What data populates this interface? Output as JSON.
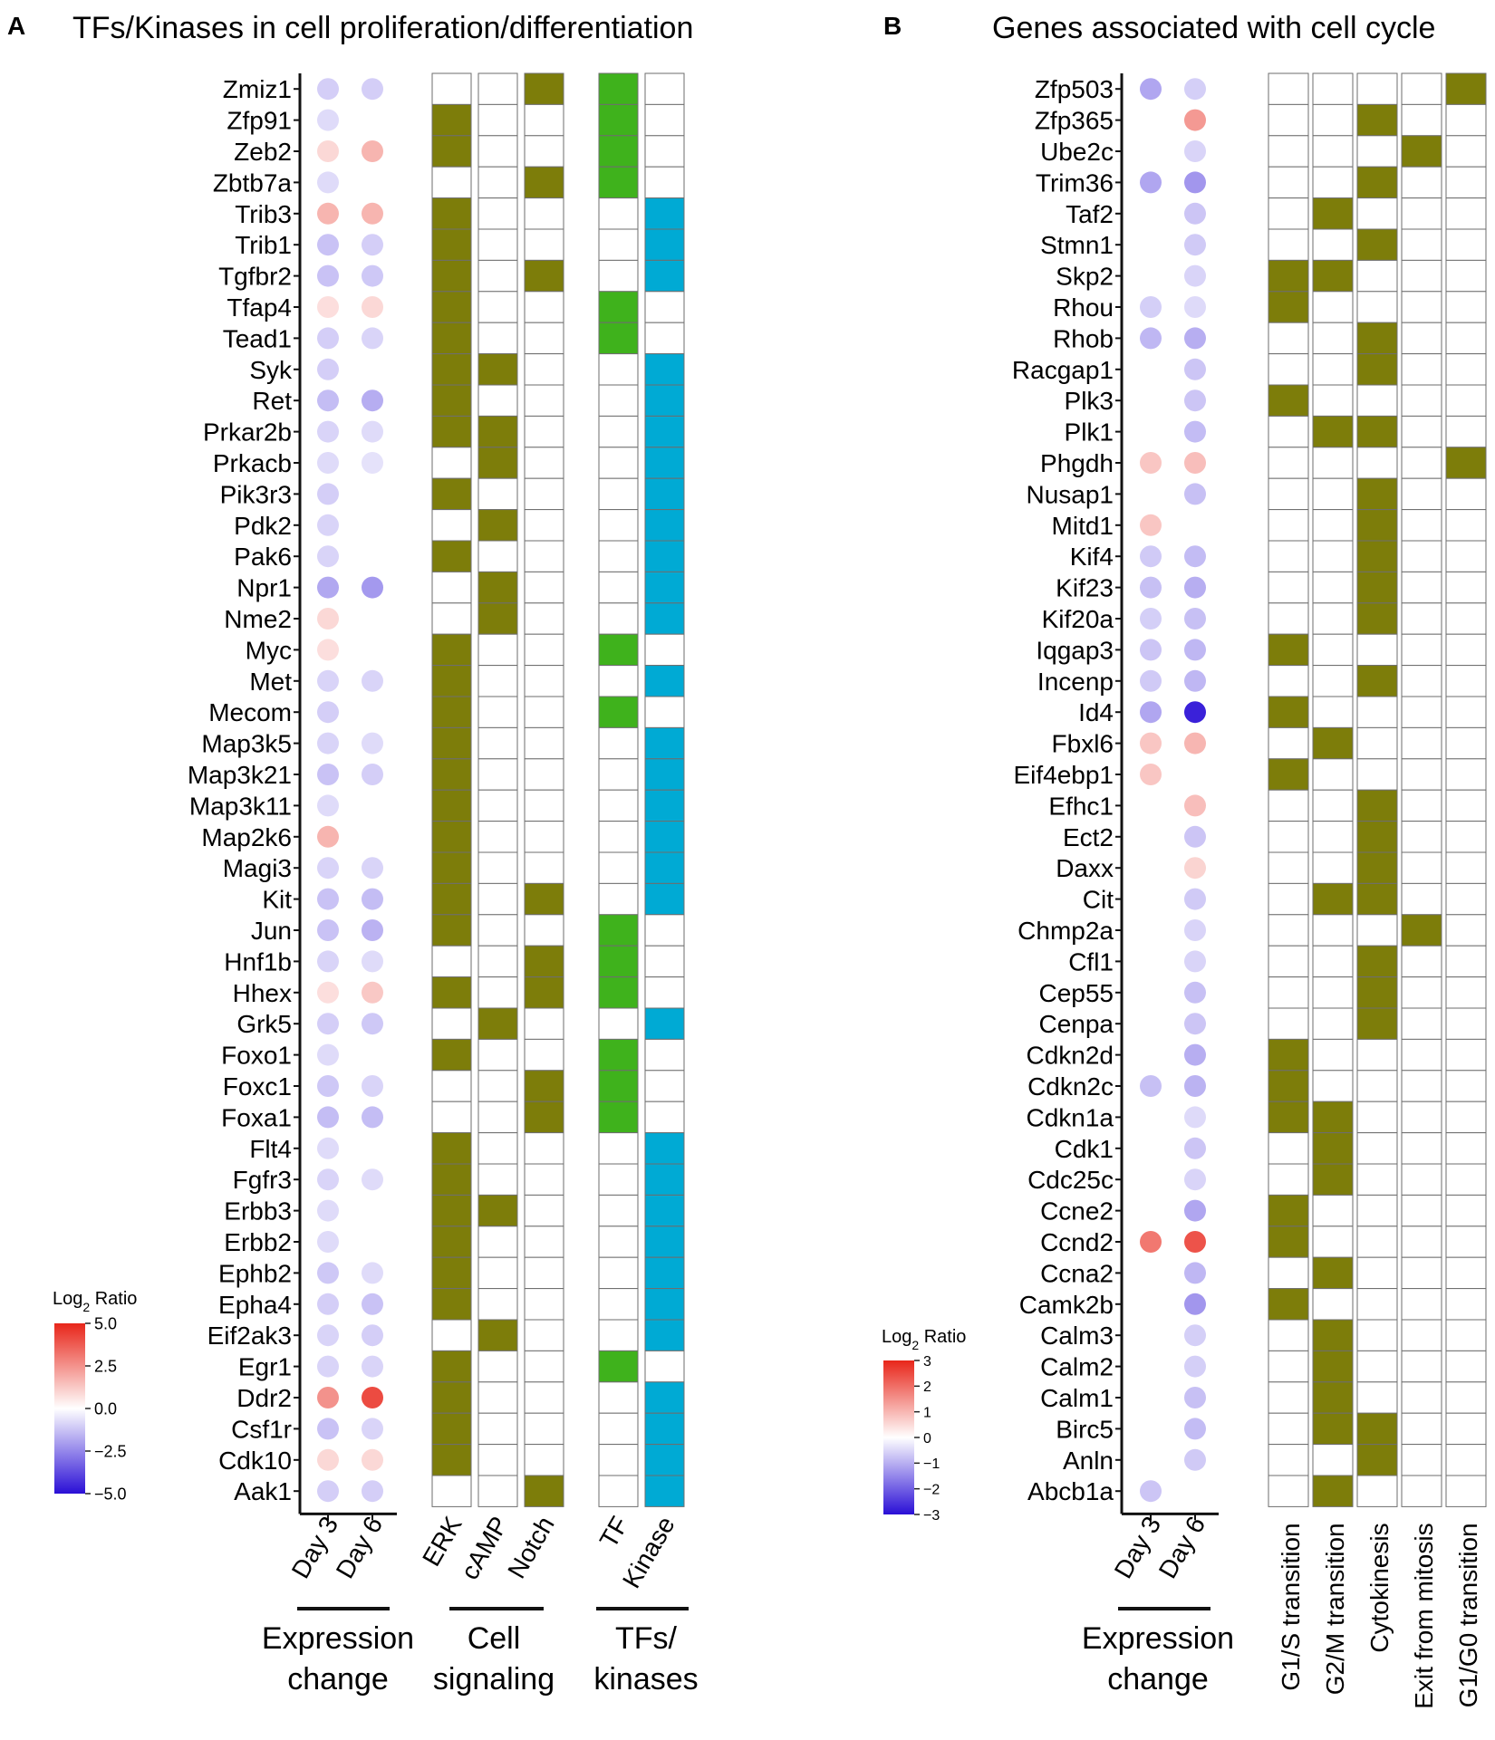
{
  "colors": {
    "pathway": "#7d7d0a",
    "tf": "#3fb21c",
    "kinase": "#00aad4",
    "cell_border": "#6e6e6e",
    "scale_low": "#2a0fd6",
    "scale_mid": "#ffffff",
    "scale_high": "#e8261a"
  },
  "chart_data": [
    {
      "type": "heatmap",
      "panel_letter": "A",
      "title": "TFs/Kinases in cell proliferation/differentiation",
      "genes": [
        "Zmiz1",
        "Zfp91",
        "Zeb2",
        "Zbtb7a",
        "Trib3",
        "Trib1",
        "Tgfbr2",
        "Tfap4",
        "Tead1",
        "Syk",
        "Ret",
        "Prkar2b",
        "Prkacb",
        "Pik3r3",
        "Pdk2",
        "Pak6",
        "Npr1",
        "Nme2",
        "Myc",
        "Met",
        "Mecom",
        "Map3k5",
        "Map3k21",
        "Map3k11",
        "Map2k6",
        "Magi3",
        "Kit",
        "Jun",
        "Hnf1b",
        "Hhex",
        "Grk5",
        "Foxo1",
        "Foxc1",
        "Foxa1",
        "Flt4",
        "Fgfr3",
        "Erbb3",
        "Erbb2",
        "Ephb2",
        "Epha4",
        "Eif2ak3",
        "Egr1",
        "Ddr2",
        "Csf1r",
        "Cdk10",
        "Aak1"
      ],
      "expression_columns": [
        "Day 3",
        "Day 6"
      ],
      "expression": [
        [
          -0.6,
          -0.6
        ],
        [
          -0.4,
          null
        ],
        [
          0.5,
          1.2
        ],
        [
          -0.4,
          null
        ],
        [
          1.2,
          1.2
        ],
        [
          -0.8,
          -0.6
        ],
        [
          -0.8,
          -0.7
        ],
        [
          0.4,
          0.5
        ],
        [
          -0.6,
          -0.5
        ],
        [
          -0.6,
          null
        ],
        [
          -0.9,
          -1.2
        ],
        [
          -0.5,
          -0.4
        ],
        [
          -0.4,
          -0.3
        ],
        [
          -0.6,
          null
        ],
        [
          -0.5,
          null
        ],
        [
          -0.5,
          null
        ],
        [
          -1.3,
          -1.6
        ],
        [
          0.5,
          null
        ],
        [
          0.4,
          null
        ],
        [
          -0.5,
          -0.5
        ],
        [
          -0.6,
          null
        ],
        [
          -0.5,
          -0.4
        ],
        [
          -0.8,
          -0.6
        ],
        [
          -0.4,
          null
        ],
        [
          1.2,
          null
        ],
        [
          -0.5,
          -0.5
        ],
        [
          -0.8,
          -0.9
        ],
        [
          -0.8,
          -1.1
        ],
        [
          -0.5,
          -0.4
        ],
        [
          0.4,
          0.8
        ],
        [
          -0.6,
          -0.7
        ],
        [
          -0.4,
          null
        ],
        [
          -0.7,
          -0.5
        ],
        [
          -0.9,
          -0.9
        ],
        [
          -0.4,
          null
        ],
        [
          -0.5,
          -0.4
        ],
        [
          -0.4,
          null
        ],
        [
          -0.4,
          null
        ],
        [
          -0.7,
          -0.4
        ],
        [
          -0.6,
          -0.8
        ],
        [
          -0.5,
          -0.6
        ],
        [
          -0.5,
          -0.5
        ],
        [
          2.0,
          3.9
        ],
        [
          -0.8,
          -0.5
        ],
        [
          0.5,
          0.5
        ],
        [
          -0.6,
          -0.6
        ]
      ],
      "groups": [
        {
          "labels": [
            "ERK",
            "cAMP",
            "Notch"
          ],
          "title_lines": [
            "Cell",
            "signaling"
          ]
        },
        {
          "labels": [
            "TF",
            "Kinase"
          ],
          "title_lines": [
            "TFs/",
            "kinases"
          ]
        }
      ],
      "expression_title_lines": [
        "Expression",
        "change"
      ],
      "signaling": [
        [
          0,
          0,
          1
        ],
        [
          1,
          0,
          0
        ],
        [
          1,
          0,
          0
        ],
        [
          0,
          0,
          1
        ],
        [
          1,
          0,
          0
        ],
        [
          1,
          0,
          0
        ],
        [
          1,
          0,
          1
        ],
        [
          1,
          0,
          0
        ],
        [
          1,
          0,
          0
        ],
        [
          1,
          1,
          0
        ],
        [
          1,
          0,
          0
        ],
        [
          1,
          1,
          0
        ],
        [
          0,
          1,
          0
        ],
        [
          1,
          0,
          0
        ],
        [
          0,
          1,
          0
        ],
        [
          1,
          0,
          0
        ],
        [
          0,
          1,
          0
        ],
        [
          0,
          1,
          0
        ],
        [
          1,
          0,
          0
        ],
        [
          1,
          0,
          0
        ],
        [
          1,
          0,
          0
        ],
        [
          1,
          0,
          0
        ],
        [
          1,
          0,
          0
        ],
        [
          1,
          0,
          0
        ],
        [
          1,
          0,
          0
        ],
        [
          1,
          0,
          0
        ],
        [
          1,
          0,
          1
        ],
        [
          1,
          0,
          0
        ],
        [
          0,
          0,
          1
        ],
        [
          1,
          0,
          1
        ],
        [
          0,
          1,
          0
        ],
        [
          1,
          0,
          0
        ],
        [
          0,
          0,
          1
        ],
        [
          0,
          0,
          1
        ],
        [
          1,
          0,
          0
        ],
        [
          1,
          0,
          0
        ],
        [
          1,
          1,
          0
        ],
        [
          1,
          0,
          0
        ],
        [
          1,
          0,
          0
        ],
        [
          1,
          0,
          0
        ],
        [
          0,
          1,
          0
        ],
        [
          1,
          0,
          0
        ],
        [
          1,
          0,
          0
        ],
        [
          1,
          0,
          0
        ],
        [
          1,
          0,
          0
        ],
        [
          0,
          0,
          1
        ]
      ],
      "tf_kinase": [
        [
          1,
          0
        ],
        [
          1,
          0
        ],
        [
          1,
          0
        ],
        [
          1,
          0
        ],
        [
          0,
          1
        ],
        [
          0,
          1
        ],
        [
          0,
          1
        ],
        [
          1,
          0
        ],
        [
          1,
          0
        ],
        [
          0,
          1
        ],
        [
          0,
          1
        ],
        [
          0,
          1
        ],
        [
          0,
          1
        ],
        [
          0,
          1
        ],
        [
          0,
          1
        ],
        [
          0,
          1
        ],
        [
          0,
          1
        ],
        [
          0,
          1
        ],
        [
          1,
          0
        ],
        [
          0,
          1
        ],
        [
          1,
          0
        ],
        [
          0,
          1
        ],
        [
          0,
          1
        ],
        [
          0,
          1
        ],
        [
          0,
          1
        ],
        [
          0,
          1
        ],
        [
          0,
          1
        ],
        [
          1,
          0
        ],
        [
          1,
          0
        ],
        [
          1,
          0
        ],
        [
          0,
          1
        ],
        [
          1,
          0
        ],
        [
          1,
          0
        ],
        [
          1,
          0
        ],
        [
          0,
          1
        ],
        [
          0,
          1
        ],
        [
          0,
          1
        ],
        [
          0,
          1
        ],
        [
          0,
          1
        ],
        [
          0,
          1
        ],
        [
          0,
          1
        ],
        [
          1,
          0
        ],
        [
          0,
          1
        ],
        [
          0,
          1
        ],
        [
          0,
          1
        ],
        [
          0,
          1
        ]
      ],
      "legend": {
        "title": "Log2 Ratio",
        "title_base": "Log",
        "title_sub": "2",
        "title_rest": " Ratio",
        "range": [
          -5.0,
          5.0
        ],
        "ticks": [
          "5.0",
          "2.5",
          "0.0",
          "−2.5",
          "−5.0"
        ],
        "tick_values": [
          5.0,
          2.5,
          0.0,
          -2.5,
          -5.0
        ]
      }
    },
    {
      "type": "heatmap",
      "panel_letter": "B",
      "title": "Genes associated with cell cycle",
      "genes": [
        "Zfp503",
        "Zfp365",
        "Ube2c",
        "Trim36",
        "Taf2",
        "Stmn1",
        "Skp2",
        "Rhou",
        "Rhob",
        "Racgap1",
        "Plk3",
        "Plk1",
        "Phgdh",
        "Nusap1",
        "Mitd1",
        "Kif4",
        "Kif23",
        "Kif20a",
        "Iqgap3",
        "Incenp",
        "Id4",
        "Fbxl6",
        "Eif4ebp1",
        "Efhc1",
        "Ect2",
        "Daxx",
        "Cit",
        "Chmp2a",
        "Cfl1",
        "Cep55",
        "Cenpa",
        "Cdkn2d",
        "Cdkn2c",
        "Cdkn1a",
        "Cdk1",
        "Cdc25c",
        "Ccne2",
        "Ccnd2",
        "Ccna2",
        "Camk2b",
        "Calm3",
        "Calm2",
        "Calm1",
        "Birc5",
        "Anln",
        "Abcb1a"
      ],
      "expression_columns": [
        "Day 3",
        "Day 6"
      ],
      "expression": [
        [
          -0.8,
          -0.35
        ],
        [
          null,
          1.1
        ],
        [
          null,
          -0.3
        ],
        [
          -0.8,
          -1.0
        ],
        [
          null,
          -0.45
        ],
        [
          null,
          -0.4
        ],
        [
          null,
          -0.3
        ],
        [
          -0.35,
          -0.25
        ],
        [
          -0.6,
          -0.7
        ],
        [
          null,
          -0.45
        ],
        [
          null,
          -0.45
        ],
        [
          null,
          -0.55
        ],
        [
          0.5,
          0.6
        ],
        [
          null,
          -0.5
        ],
        [
          0.5,
          null
        ],
        [
          -0.4,
          -0.55
        ],
        [
          -0.5,
          -0.7
        ],
        [
          -0.35,
          -0.5
        ],
        [
          -0.45,
          -0.6
        ],
        [
          -0.4,
          -0.6
        ],
        [
          -0.8,
          -2.7
        ],
        [
          0.5,
          0.7
        ],
        [
          0.5,
          null
        ],
        [
          null,
          0.6
        ],
        [
          null,
          -0.45
        ],
        [
          null,
          0.35
        ],
        [
          null,
          -0.4
        ],
        [
          null,
          -0.3
        ],
        [
          null,
          -0.3
        ],
        [
          null,
          -0.5
        ],
        [
          null,
          -0.45
        ],
        [
          null,
          -0.7
        ],
        [
          -0.5,
          -0.65
        ],
        [
          null,
          -0.25
        ],
        [
          null,
          -0.45
        ],
        [
          null,
          -0.3
        ],
        [
          null,
          -0.8
        ],
        [
          1.6,
          2.2
        ],
        [
          null,
          -0.6
        ],
        [
          null,
          -1.0
        ],
        [
          null,
          -0.35
        ],
        [
          null,
          -0.35
        ],
        [
          null,
          -0.5
        ],
        [
          null,
          -0.55
        ],
        [
          null,
          -0.4
        ],
        [
          -0.45,
          null
        ]
      ],
      "groups": [
        {
          "labels": [
            "G1/S transition",
            "G2/M transition",
            "Cytokinesis",
            "Exit from mitosis",
            "G1/G0 transition"
          ],
          "title_lines": []
        }
      ],
      "expression_title_lines": [
        "Expression",
        "change"
      ],
      "categories_matrix": [
        [
          0,
          0,
          0,
          0,
          1
        ],
        [
          0,
          0,
          1,
          0,
          0
        ],
        [
          0,
          0,
          0,
          1,
          0
        ],
        [
          0,
          0,
          1,
          0,
          0
        ],
        [
          0,
          1,
          0,
          0,
          0
        ],
        [
          0,
          0,
          1,
          0,
          0
        ],
        [
          1,
          1,
          0,
          0,
          0
        ],
        [
          1,
          0,
          0,
          0,
          0
        ],
        [
          0,
          0,
          1,
          0,
          0
        ],
        [
          0,
          0,
          1,
          0,
          0
        ],
        [
          1,
          0,
          0,
          0,
          0
        ],
        [
          0,
          1,
          1,
          0,
          0
        ],
        [
          0,
          0,
          0,
          0,
          1
        ],
        [
          0,
          0,
          1,
          0,
          0
        ],
        [
          0,
          0,
          1,
          0,
          0
        ],
        [
          0,
          0,
          1,
          0,
          0
        ],
        [
          0,
          0,
          1,
          0,
          0
        ],
        [
          0,
          0,
          1,
          0,
          0
        ],
        [
          1,
          0,
          0,
          0,
          0
        ],
        [
          0,
          0,
          1,
          0,
          0
        ],
        [
          1,
          0,
          0,
          0,
          0
        ],
        [
          0,
          1,
          0,
          0,
          0
        ],
        [
          1,
          0,
          0,
          0,
          0
        ],
        [
          0,
          0,
          1,
          0,
          0
        ],
        [
          0,
          0,
          1,
          0,
          0
        ],
        [
          0,
          0,
          1,
          0,
          0
        ],
        [
          0,
          1,
          1,
          0,
          0
        ],
        [
          0,
          0,
          0,
          1,
          0
        ],
        [
          0,
          0,
          1,
          0,
          0
        ],
        [
          0,
          0,
          1,
          0,
          0
        ],
        [
          0,
          0,
          1,
          0,
          0
        ],
        [
          1,
          0,
          0,
          0,
          0
        ],
        [
          1,
          0,
          0,
          0,
          0
        ],
        [
          1,
          1,
          0,
          0,
          0
        ],
        [
          0,
          1,
          0,
          0,
          0
        ],
        [
          0,
          1,
          0,
          0,
          0
        ],
        [
          1,
          0,
          0,
          0,
          0
        ],
        [
          1,
          0,
          0,
          0,
          0
        ],
        [
          0,
          1,
          0,
          0,
          0
        ],
        [
          1,
          0,
          0,
          0,
          0
        ],
        [
          0,
          1,
          0,
          0,
          0
        ],
        [
          0,
          1,
          0,
          0,
          0
        ],
        [
          0,
          1,
          0,
          0,
          0
        ],
        [
          0,
          1,
          1,
          0,
          0
        ],
        [
          0,
          0,
          1,
          0,
          0
        ],
        [
          0,
          1,
          0,
          0,
          0
        ]
      ],
      "legend": {
        "title": "Log2 Ratio",
        "title_base": "Log",
        "title_sub": "2",
        "title_rest": " Ratio",
        "range": [
          -3,
          3
        ],
        "ticks": [
          "3",
          "2",
          "1",
          "0",
          "−1",
          "−2",
          "−3"
        ],
        "tick_values": [
          3,
          2,
          1,
          0,
          -1,
          -2,
          -3
        ]
      }
    }
  ]
}
